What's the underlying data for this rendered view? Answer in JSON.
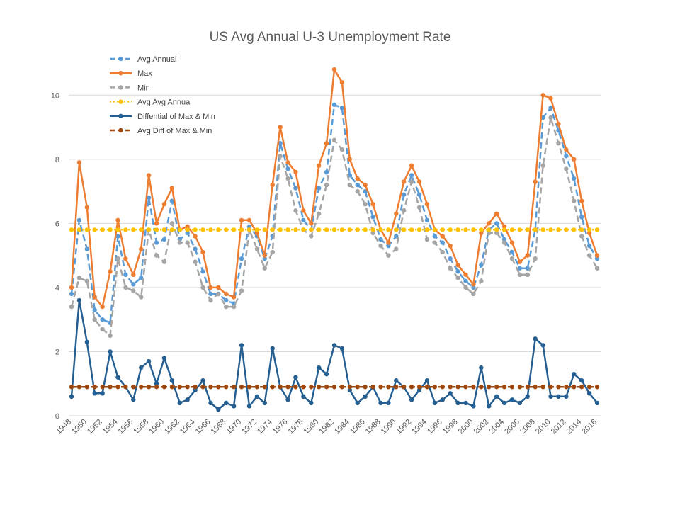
{
  "chart_data": {
    "type": "line",
    "title": "US Avg Annual U-3 Unemployment Rate",
    "xlabel": "",
    "ylabel": "",
    "ylim": [
      0,
      11
    ],
    "yticks": [
      0,
      2,
      4,
      6,
      8,
      10
    ],
    "grid": true,
    "legend_position": "top-left",
    "x": [
      1948,
      1949,
      1950,
      1951,
      1952,
      1953,
      1954,
      1955,
      1956,
      1957,
      1958,
      1959,
      1960,
      1961,
      1962,
      1963,
      1964,
      1965,
      1966,
      1967,
      1968,
      1969,
      1970,
      1971,
      1972,
      1973,
      1974,
      1975,
      1976,
      1977,
      1978,
      1979,
      1980,
      1981,
      1982,
      1983,
      1984,
      1985,
      1986,
      1987,
      1988,
      1989,
      1990,
      1991,
      1992,
      1993,
      1994,
      1995,
      1996,
      1997,
      1998,
      1999,
      2000,
      2001,
      2002,
      2003,
      2004,
      2005,
      2006,
      2007,
      2008,
      2009,
      2010,
      2011,
      2012,
      2013,
      2014,
      2015,
      2016
    ],
    "x_tick_labels": [
      "1948",
      "1950",
      "1952",
      "1954",
      "1956",
      "1958",
      "1960",
      "1962",
      "1964",
      "1966",
      "1968",
      "1970",
      "1972",
      "1974",
      "1976",
      "1978",
      "1980",
      "1982",
      "1984",
      "1986",
      "1988",
      "1990",
      "1992",
      "1994",
      "1996",
      "1998",
      "2000",
      "2002",
      "2004",
      "2006",
      "2008",
      "2010",
      "2012",
      "2014",
      "2016"
    ],
    "series": [
      {
        "name": "Avg Annual",
        "color": "#5B9BD5",
        "style": "dashed-marker",
        "values": [
          3.8,
          6.1,
          5.2,
          3.3,
          3.0,
          2.9,
          5.6,
          4.4,
          4.1,
          4.3,
          6.8,
          5.4,
          5.5,
          6.7,
          5.5,
          5.7,
          5.2,
          4.5,
          3.8,
          3.8,
          3.6,
          3.5,
          4.9,
          5.9,
          5.6,
          4.9,
          5.6,
          8.5,
          7.7,
          7.1,
          6.1,
          5.8,
          7.1,
          7.6,
          9.7,
          9.6,
          7.5,
          7.2,
          7.0,
          6.2,
          5.5,
          5.3,
          5.6,
          6.9,
          7.5,
          6.9,
          6.1,
          5.6,
          5.4,
          4.9,
          4.5,
          4.2,
          4.0,
          4.7,
          5.8,
          6.0,
          5.5,
          5.1,
          4.6,
          4.6,
          5.8,
          9.3,
          9.6,
          8.9,
          8.1,
          7.4,
          6.2,
          5.3,
          4.9
        ]
      },
      {
        "name": "Max",
        "color": "#ED7D31",
        "style": "solid-marker",
        "values": [
          4.0,
          7.9,
          6.5,
          3.7,
          3.4,
          4.5,
          6.1,
          4.9,
          4.4,
          5.2,
          7.5,
          6.0,
          6.6,
          7.1,
          5.8,
          5.9,
          5.6,
          5.1,
          4.0,
          4.0,
          3.8,
          3.7,
          6.1,
          6.1,
          5.7,
          5.0,
          7.2,
          9.0,
          7.9,
          7.6,
          6.4,
          6.0,
          7.8,
          8.5,
          10.8,
          10.4,
          8.0,
          7.4,
          7.2,
          6.6,
          5.8,
          5.4,
          6.3,
          7.3,
          7.8,
          7.3,
          6.6,
          5.8,
          5.6,
          5.3,
          4.7,
          4.4,
          4.1,
          5.7,
          6.0,
          6.3,
          5.9,
          5.4,
          4.8,
          5.0,
          7.3,
          10.0,
          9.9,
          9.1,
          8.3,
          8.0,
          6.7,
          5.7,
          5.0
        ]
      },
      {
        "name": "Min",
        "color": "#A5A5A5",
        "style": "dashed-marker",
        "values": [
          3.4,
          4.3,
          4.2,
          3.0,
          2.7,
          2.5,
          4.9,
          4.0,
          3.9,
          3.7,
          5.8,
          5.0,
          4.8,
          6.0,
          5.4,
          5.4,
          4.8,
          4.0,
          3.6,
          3.8,
          3.4,
          3.4,
          3.9,
          5.8,
          5.2,
          4.6,
          5.1,
          8.1,
          7.4,
          6.4,
          5.8,
          5.6,
          6.3,
          7.2,
          8.6,
          8.3,
          7.2,
          7.0,
          6.6,
          5.7,
          5.3,
          5.0,
          5.2,
          6.4,
          7.3,
          6.5,
          5.5,
          5.4,
          5.1,
          4.6,
          4.3,
          4.0,
          3.8,
          4.2,
          5.7,
          5.7,
          5.4,
          4.9,
          4.4,
          4.4,
          4.9,
          7.8,
          9.3,
          8.5,
          7.7,
          6.7,
          5.6,
          5.0,
          4.6
        ]
      },
      {
        "name": "Avg Avg Annual",
        "color": "#FFC000",
        "style": "dotted-marker",
        "values": [
          5.8,
          5.8,
          5.8,
          5.8,
          5.8,
          5.8,
          5.8,
          5.8,
          5.8,
          5.8,
          5.8,
          5.8,
          5.8,
          5.8,
          5.8,
          5.8,
          5.8,
          5.8,
          5.8,
          5.8,
          5.8,
          5.8,
          5.8,
          5.8,
          5.8,
          5.8,
          5.8,
          5.8,
          5.8,
          5.8,
          5.8,
          5.8,
          5.8,
          5.8,
          5.8,
          5.8,
          5.8,
          5.8,
          5.8,
          5.8,
          5.8,
          5.8,
          5.8,
          5.8,
          5.8,
          5.8,
          5.8,
          5.8,
          5.8,
          5.8,
          5.8,
          5.8,
          5.8,
          5.8,
          5.8,
          5.8,
          5.8,
          5.8,
          5.8,
          5.8,
          5.8,
          5.8,
          5.8,
          5.8,
          5.8,
          5.8,
          5.8,
          5.8,
          5.8
        ]
      },
      {
        "name": "Diffential of Max & Min",
        "color": "#255E91",
        "style": "solid-marker",
        "values": [
          0.6,
          3.6,
          2.3,
          0.7,
          0.7,
          2.0,
          1.2,
          0.9,
          0.5,
          1.5,
          1.7,
          1.0,
          1.8,
          1.1,
          0.4,
          0.5,
          0.8,
          1.1,
          0.4,
          0.2,
          0.4,
          0.3,
          2.2,
          0.3,
          0.6,
          0.4,
          2.1,
          0.9,
          0.5,
          1.2,
          0.6,
          0.4,
          1.5,
          1.3,
          2.2,
          2.1,
          0.8,
          0.4,
          0.6,
          0.9,
          0.4,
          0.4,
          1.1,
          0.9,
          0.5,
          0.8,
          1.1,
          0.4,
          0.5,
          0.7,
          0.4,
          0.4,
          0.3,
          1.5,
          0.3,
          0.6,
          0.4,
          0.5,
          0.4,
          0.6,
          2.4,
          2.2,
          0.6,
          0.6,
          0.6,
          1.3,
          1.1,
          0.7,
          0.4
        ]
      },
      {
        "name": "Avg Diff of Max & Min",
        "color": "#9E480E",
        "style": "dashed-marker",
        "values": [
          0.9,
          0.9,
          0.9,
          0.9,
          0.9,
          0.9,
          0.9,
          0.9,
          0.9,
          0.9,
          0.9,
          0.9,
          0.9,
          0.9,
          0.9,
          0.9,
          0.9,
          0.9,
          0.9,
          0.9,
          0.9,
          0.9,
          0.9,
          0.9,
          0.9,
          0.9,
          0.9,
          0.9,
          0.9,
          0.9,
          0.9,
          0.9,
          0.9,
          0.9,
          0.9,
          0.9,
          0.9,
          0.9,
          0.9,
          0.9,
          0.9,
          0.9,
          0.9,
          0.9,
          0.9,
          0.9,
          0.9,
          0.9,
          0.9,
          0.9,
          0.9,
          0.9,
          0.9,
          0.9,
          0.9,
          0.9,
          0.9,
          0.9,
          0.9,
          0.9,
          0.9,
          0.9,
          0.9,
          0.9,
          0.9,
          0.9,
          0.9,
          0.9,
          0.9
        ]
      }
    ]
  }
}
